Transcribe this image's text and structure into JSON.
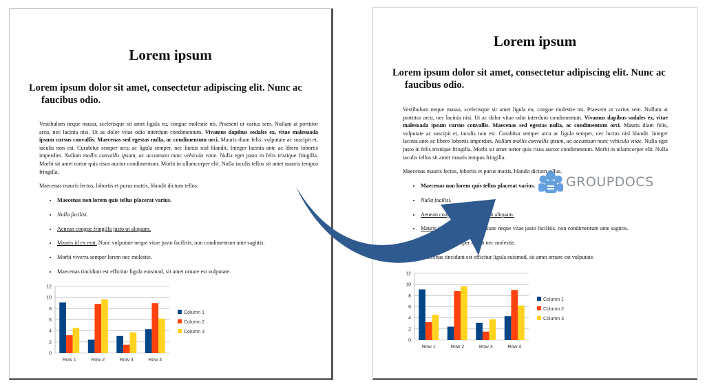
{
  "document": {
    "title": "Lorem ipsum",
    "heading": "Lorem ipsum dolor sit amet, consectetur adipiscing elit. Nunc ac faucibus odio.",
    "para1": [
      {
        "t": "Vestibulum neque massa, scelerisque sit amet ligula eu, congue molestie mi. Praesent ut varius sem. Nullam at porttitor arcu, nec lacinia nisi. Ut ac dolor vitae odio interdum condimentum. ",
        "s": "n"
      },
      {
        "t": "Vivamus dapibus sodales ex, vitae malesuada ipsum cursus convallis. Maecenas sed egestas nulla, ac condimentum orci.",
        "s": "b"
      },
      {
        "t": " Mauris diam felis, vulputate ac suscipit et, iaculis non est. Curabitur semper arcu ac ligula semper, nec luctus nisl blandit. Integer lacinia ante ac libero lobortis imperdiet. ",
        "s": "n"
      },
      {
        "t": "Nullam mollis convallis ipsum, ac accumsan nunc vehicula vitae.",
        "s": "i"
      },
      {
        "t": " Nulla eget justo in felis tristique fringilla. Morbi sit amet tortor quis risus auctor condimentum. Morbi in ullamcorper elit. Nulla iaculis tellus sit amet mauris tempus fringilla.",
        "s": "n"
      }
    ],
    "para2": "Maecenas mauris lectus, lobortis et purus mattis, blandit dictum tellus.",
    "list": [
      [
        {
          "t": "Maecenas non lorem quis tellus placerat varius.",
          "s": "b"
        }
      ],
      [
        {
          "t": "Nulla facilisi.",
          "s": "i"
        }
      ],
      [
        {
          "t": "Aenean congue fringilla justo ut aliquam.",
          "s": "u"
        }
      ],
      [
        {
          "t": "Mauris id ex erat.",
          "s": "u"
        },
        {
          "t": " Nunc vulputate neque vitae justo facilisis, non condimentum ante sagittis.",
          "s": "n"
        }
      ],
      [
        {
          "t": "Morbi viverra semper lorem nec molestie.",
          "s": "n"
        }
      ],
      [
        {
          "t": "Maecenas tincidunt est efficitur ligula euismod, sit amet ornare est vulputate.",
          "s": "n"
        }
      ]
    ]
  },
  "watermark": {
    "text": "GROUPDOCS",
    "color": "#4a90d9"
  },
  "arrow_color": "#2f5a8f",
  "chart_data": {
    "type": "bar",
    "categories": [
      "Row 1",
      "Row 2",
      "Row 3",
      "Row 4"
    ],
    "series": [
      {
        "name": "Column 1",
        "values": [
          9.1,
          2.4,
          3.1,
          4.3
        ],
        "color": "#004586"
      },
      {
        "name": "Column 2",
        "values": [
          3.2,
          8.8,
          1.5,
          9.0
        ],
        "color": "#ff420e"
      },
      {
        "name": "Column 3",
        "values": [
          4.5,
          9.65,
          3.7,
          6.2
        ],
        "color": "#ffd320"
      }
    ],
    "ylim": [
      0,
      12
    ],
    "yticks": [
      "0",
      "2",
      "4",
      "6",
      "8",
      "10",
      "12"
    ],
    "grid": true,
    "legend": "right"
  }
}
